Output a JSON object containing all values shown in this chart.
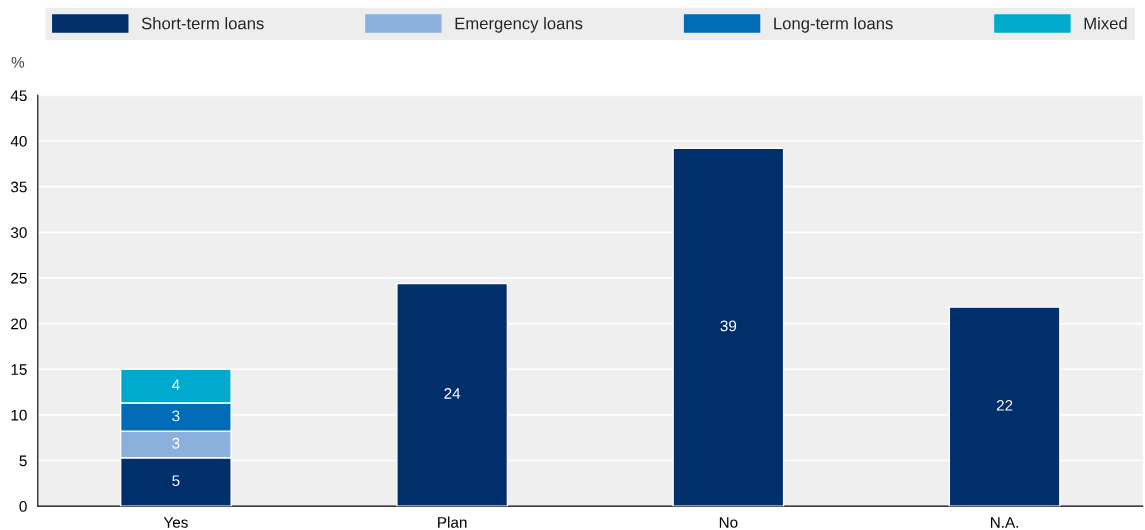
{
  "chart_data": {
    "type": "bar",
    "stacked": true,
    "ylabel": "%",
    "categories": [
      "Yes",
      "Plan",
      "No",
      "N.A."
    ],
    "series": [
      {
        "name": "Short-term loans",
        "color": "#002f6c",
        "values": [
          5.3,
          24.4,
          39.2,
          21.8
        ],
        "value_labels": [
          "5",
          "24",
          "39",
          "22"
        ]
      },
      {
        "name": "Emergency loans",
        "color": "#8cb0dc",
        "values": [
          2.9,
          null,
          null,
          null
        ],
        "value_labels": [
          "3",
          null,
          null,
          null
        ]
      },
      {
        "name": "Long-term loans",
        "color": "#006bb6",
        "values": [
          3.1,
          null,
          null,
          null
        ],
        "value_labels": [
          "3",
          null,
          null,
          null
        ]
      },
      {
        "name": "Mixed",
        "color": "#00aacc",
        "values": [
          3.7,
          null,
          null,
          null
        ],
        "value_labels": [
          "4",
          null,
          null,
          null
        ]
      }
    ],
    "ylim": [
      0,
      45
    ],
    "yticks": [
      0,
      5,
      10,
      15,
      20,
      25,
      30,
      35,
      40,
      45
    ],
    "grid": "y",
    "legend": "top"
  }
}
